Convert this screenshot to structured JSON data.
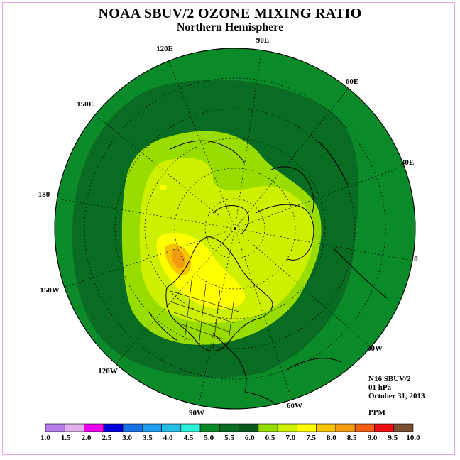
{
  "title": "NOAA SBUV/2 OZONE MIXING RATIO",
  "subtitle": "Northern Hemisphere",
  "info": {
    "instrument": "N16 SBUV/2",
    "level": "01 hPa",
    "date": "October 31, 2013",
    "units": "PPM"
  },
  "longitude_labels": [
    "90E",
    "60E",
    "30E",
    "0",
    "30W",
    "60W",
    "90W",
    "120W",
    "150W",
    "180",
    "150E",
    "120E"
  ],
  "colorbar": {
    "ticks": [
      "1.0",
      "1.5",
      "2.0",
      "2.5",
      "3.0",
      "3.5",
      "4.0",
      "4.5",
      "5.0",
      "5.5",
      "6.0",
      "6.5",
      "7.0",
      "7.5",
      "8.0",
      "8.5",
      "9.0",
      "9.5",
      "10.0"
    ],
    "colors": [
      "#b57ded",
      "#e0b0ee",
      "#ee00ee",
      "#0000dd",
      "#1772e8",
      "#1d9ef0",
      "#23bfe8",
      "#2ff0d8",
      "#0b8a2a",
      "#0a6b22",
      "#0a5a1c",
      "#99dd00",
      "#ccf000",
      "#ffff00",
      "#f4c400",
      "#f39c12",
      "#f06010",
      "#ee1010",
      "#7a5030"
    ]
  },
  "map_colors": {
    "outer": "#0b8a2a",
    "band": "#0a6b22",
    "inner": "#99dd00",
    "core": "#ccf000",
    "peak": "#ffff00",
    "hot": "#f4c400",
    "hotter": "#f39c12"
  }
}
